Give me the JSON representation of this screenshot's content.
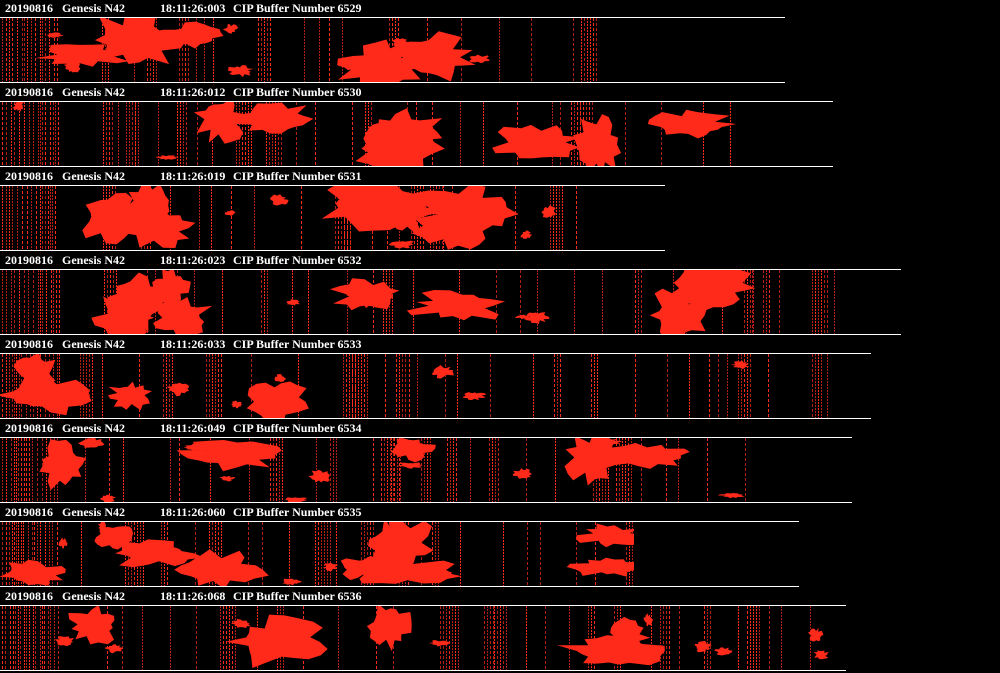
{
  "colors": {
    "background": "#000000",
    "particle": "#ff2a1a",
    "text": "#ffffff",
    "rule": "#ffffff"
  },
  "strips": [
    {
      "date": "20190816",
      "probe": "Genesis N42",
      "time": "18:11:26:003",
      "buffer_label": "CIP Buffer Number 6529"
    },
    {
      "date": "20190816",
      "probe": "Genesis N42",
      "time": "18:11:26:012",
      "buffer_label": "CIP Buffer Number 6530"
    },
    {
      "date": "20190816",
      "probe": "Genesis N42",
      "time": "18:11:26:019",
      "buffer_label": "CIP Buffer Number 6531"
    },
    {
      "date": "20190816",
      "probe": "Genesis N42",
      "time": "18:11:26:023",
      "buffer_label": "CIP Buffer Number 6532"
    },
    {
      "date": "20190816",
      "probe": "Genesis N42",
      "time": "18:11:26:033",
      "buffer_label": "CIP Buffer Number 6533"
    },
    {
      "date": "20190816",
      "probe": "Genesis N42",
      "time": "18:11:26:049",
      "buffer_label": "CIP Buffer Number 6534"
    },
    {
      "date": "20190816",
      "probe": "Genesis N42",
      "time": "18:11:26:060",
      "buffer_label": "CIP Buffer Number 6535"
    },
    {
      "date": "20190816",
      "probe": "Genesis N42",
      "time": "18:11:26:068",
      "buffer_label": "CIP Buffer Number 6536"
    }
  ]
}
